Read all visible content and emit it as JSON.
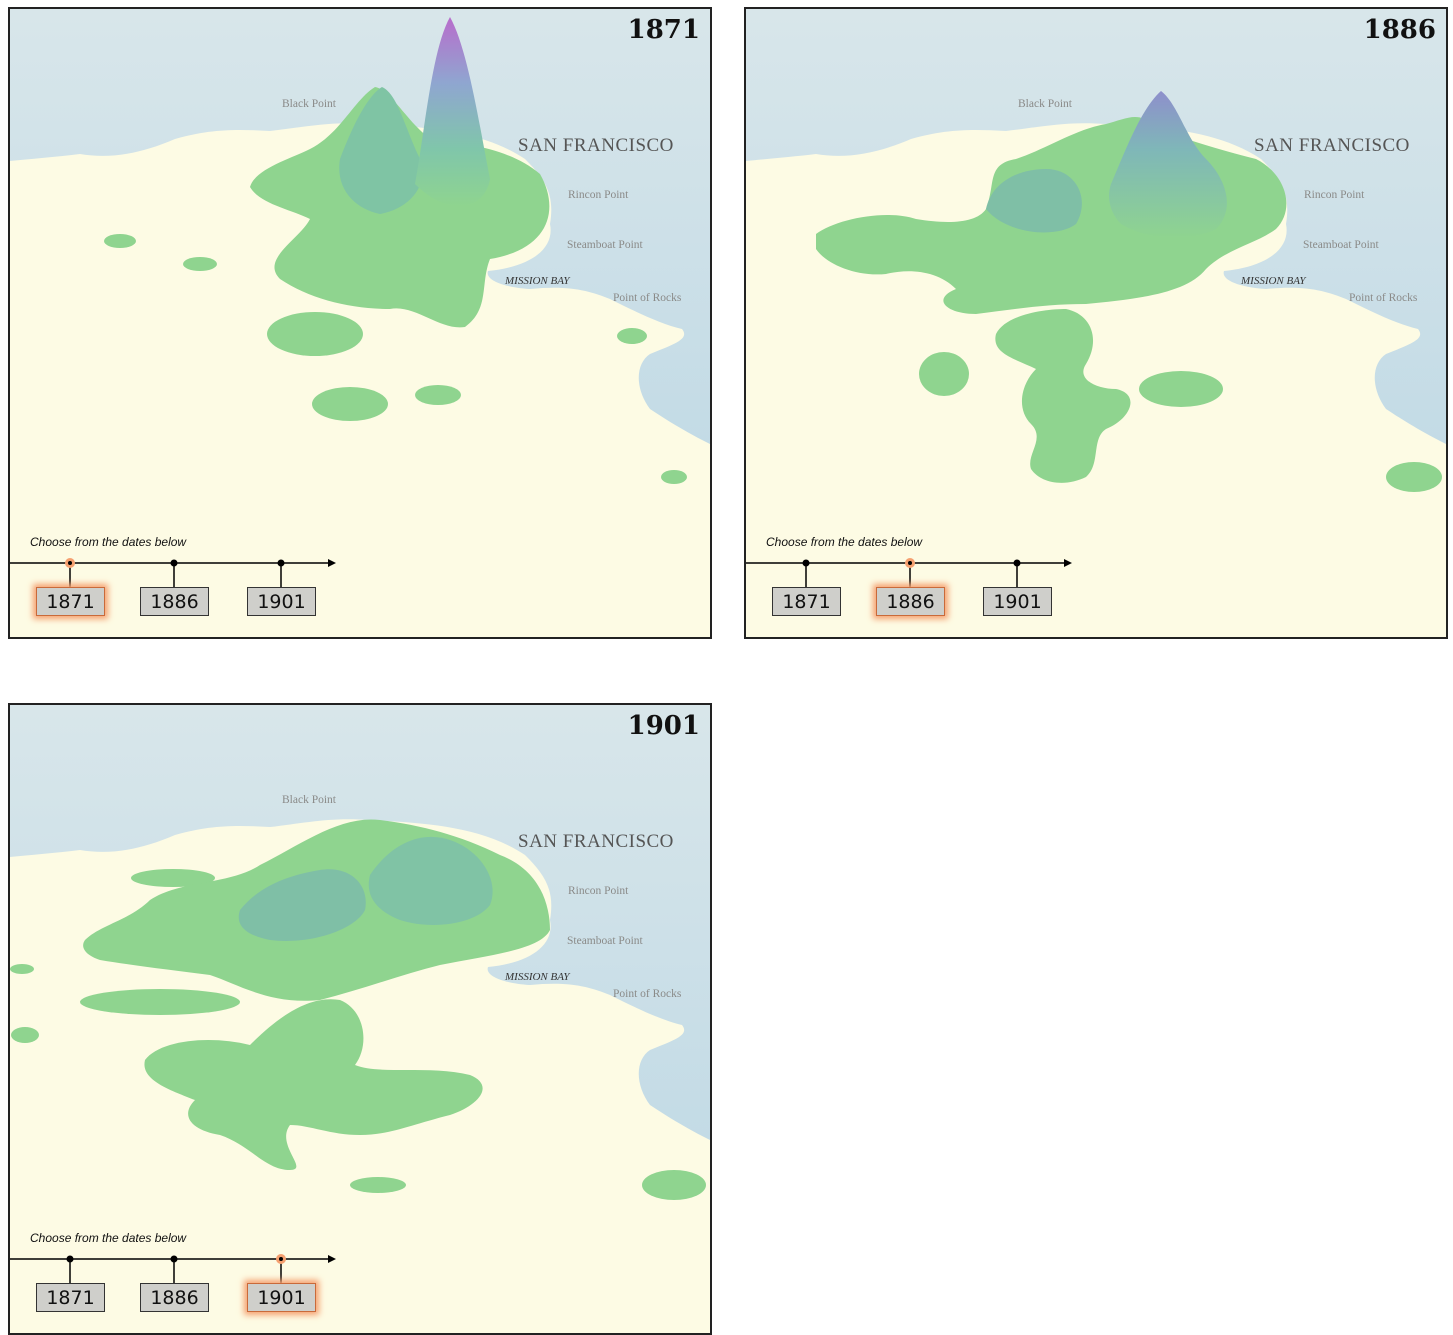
{
  "panels": [
    {
      "year": "1871",
      "active": 0,
      "timeline_prompt": "Choose from the dates below",
      "dates": [
        "1871",
        "1886",
        "1901"
      ],
      "places": {
        "black_point": "Black Point",
        "city": "SAN FRANCISCO",
        "rincon": "Rincon Point",
        "steamboat": "Steamboat Point",
        "mission_bay": "MISSION BAY",
        "point_of_rocks": "Point of Rocks"
      }
    },
    {
      "year": "1886",
      "active": 1,
      "timeline_prompt": "Choose from the dates below",
      "dates": [
        "1871",
        "1886",
        "1901"
      ],
      "places": {
        "black_point": "Black Point",
        "city": "SAN FRANCISCO",
        "rincon": "Rincon Point",
        "steamboat": "Steamboat Point",
        "mission_bay": "MISSION BAY",
        "point_of_rocks": "Point of Rocks"
      }
    },
    {
      "year": "1901",
      "active": 2,
      "timeline_prompt": "Choose from the dates below",
      "dates": [
        "1871",
        "1886",
        "1901"
      ],
      "places": {
        "black_point": "Black Point",
        "city": "SAN FRANCISCO",
        "rincon": "Rincon Point",
        "steamboat": "Steamboat Point",
        "mission_bay": "MISSION BAY",
        "point_of_rocks": "Point of Rocks"
      }
    }
  ],
  "colors": {
    "land": "#fdfbe4",
    "water": "#cfe2ea",
    "surface_low": "#8fd48f",
    "surface_mid": "#7fbfa8",
    "surface_peak": "#c47ad0",
    "active_glow": "#f5a070"
  }
}
